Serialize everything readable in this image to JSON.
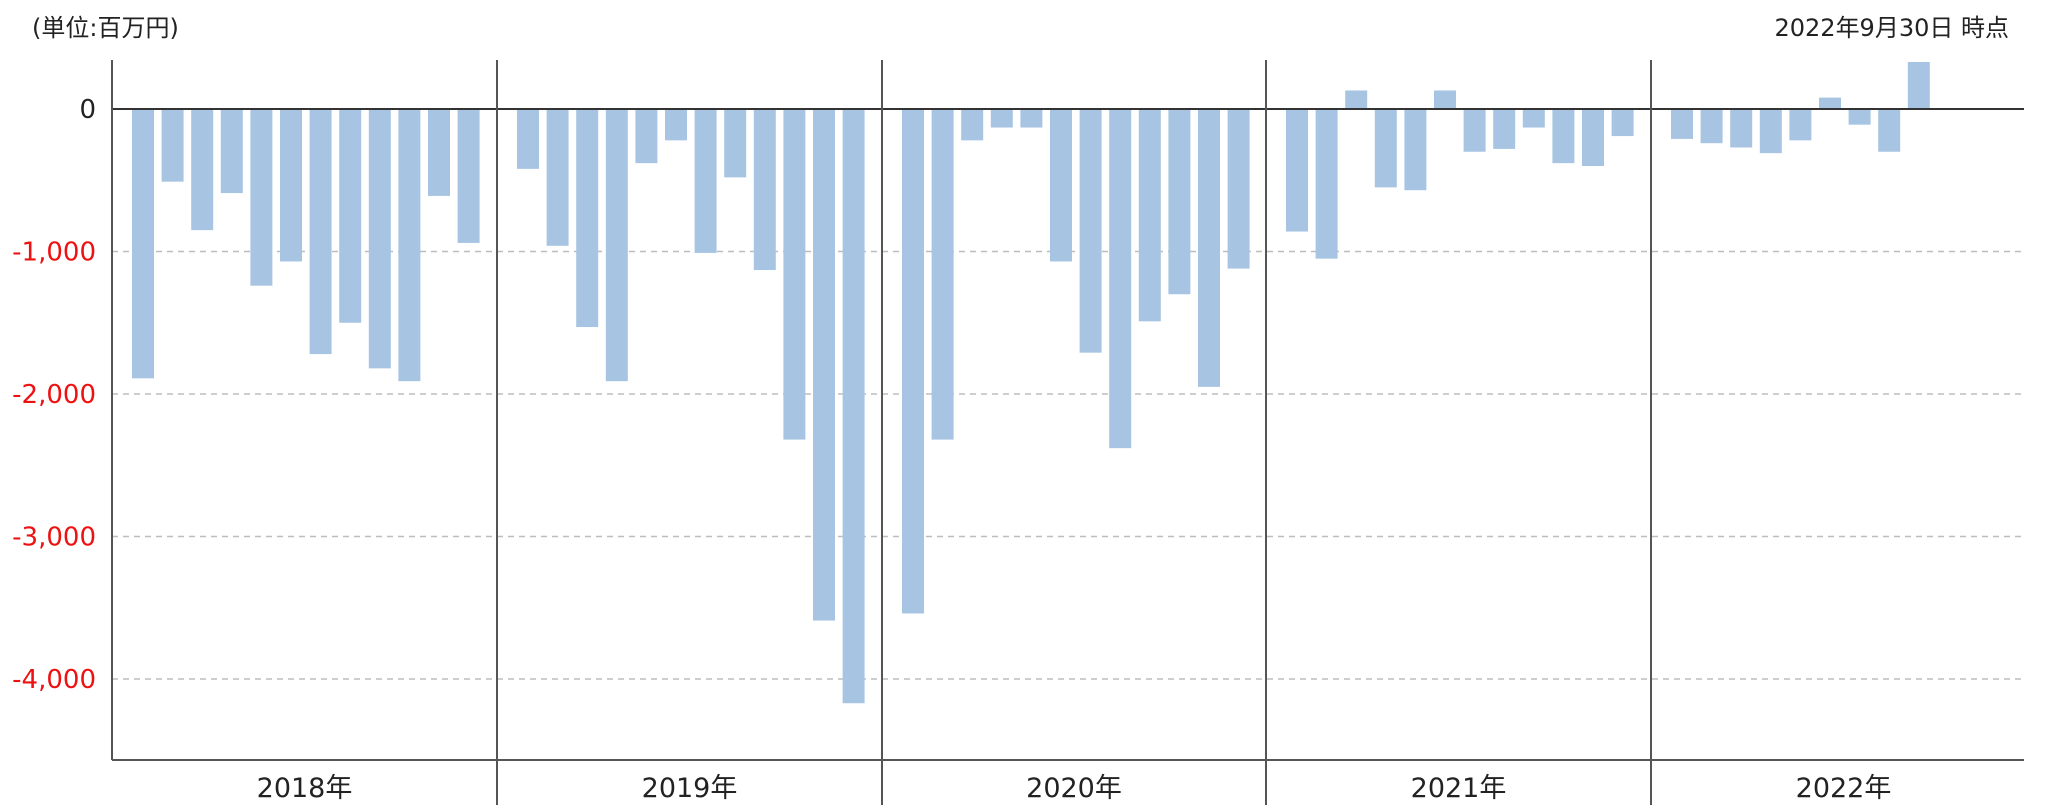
{
  "header": {
    "unit": "(単位:百万円)",
    "asof": "2022年9月30日 時点"
  },
  "chart_data": {
    "type": "bar",
    "ylim": [
      -4600,
      350
    ],
    "yticks": [
      0,
      -1000,
      -2000,
      -3000,
      -4000
    ],
    "ytick_labels": [
      "0",
      "-1,000",
      "-2,000",
      "-3,000",
      "-4,000"
    ],
    "negative_tick_color": "#ee1111",
    "zero_tick_color": "#222222",
    "bar_color": "#a7c5e3",
    "grid": "dashed horizontal",
    "groups": [
      {
        "label": "2018年",
        "values": [
          -1890,
          -510,
          -850,
          -590,
          -1240,
          -1070,
          -1720,
          -1500,
          -1820,
          -1910,
          -610,
          -940
        ]
      },
      {
        "label": "2019年",
        "values": [
          -420,
          -960,
          -1530,
          -1910,
          -380,
          -220,
          -1010,
          -480,
          -1130,
          -2320,
          -3590,
          -4170
        ]
      },
      {
        "label": "2020年",
        "values": [
          -3540,
          -2320,
          -220,
          -130,
          -130,
          -1070,
          -1710,
          -2380,
          -1490,
          -1300,
          -1950,
          -1120
        ]
      },
      {
        "label": "2021年",
        "values": [
          -860,
          -1050,
          130,
          -550,
          -570,
          130,
          -300,
          -280,
          -130,
          -380,
          -400,
          -190
        ]
      },
      {
        "label": "2022年",
        "values": [
          -210,
          -240,
          -270,
          -310,
          -220,
          80,
          -110,
          -300,
          330
        ]
      }
    ]
  }
}
